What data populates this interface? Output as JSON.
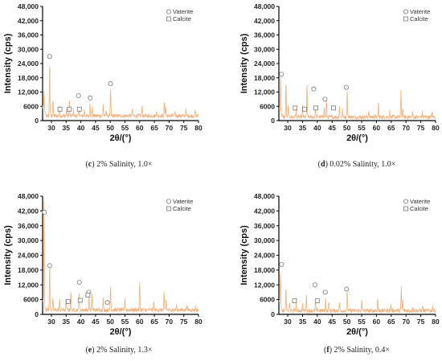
{
  "figure": {
    "legend_labels": [
      "Vaterite",
      "Calcite"
    ],
    "xlabel": "2θ/(°)",
    "ylabel": "Intensity (cps)",
    "x_ticks": [
      "30",
      "35",
      "40",
      "45",
      "50",
      "55",
      "60",
      "65",
      "70",
      "75",
      "80"
    ],
    "y_ticks": [
      "0",
      "6000",
      "12,000",
      "18,000",
      "24,000",
      "30,000",
      "36,000",
      "42,000",
      "48,000"
    ],
    "line_color": "#f5b07a",
    "axis_color": "#000000"
  },
  "panels": [
    {
      "letter": "c",
      "caption": "2% Salinity, 1.0×"
    },
    {
      "letter": "d",
      "caption": "0.02% Salinity, 1.0×"
    },
    {
      "letter": "e",
      "caption": "2% Salinity, 1.3×"
    },
    {
      "letter": "f",
      "caption": "2% Salinity, 0.4×"
    }
  ],
  "chart_data": [
    {
      "type": "line",
      "xlabel": "2θ/(°)",
      "ylabel": "Intensity (cps)",
      "xlim": [
        27,
        80
      ],
      "ylim": [
        0,
        48000
      ],
      "grid": false,
      "legend_position": "top-right",
      "baseline": 2000,
      "peaks": [
        [
          27.5,
          8000
        ],
        [
          29.4,
          24000
        ],
        [
          30.5,
          7000
        ],
        [
          32.8,
          3500
        ],
        [
          35.2,
          3000
        ],
        [
          36.1,
          7000
        ],
        [
          37.5,
          2500
        ],
        [
          39.4,
          3500
        ],
        [
          41.2,
          2500
        ],
        [
          43.1,
          5000
        ],
        [
          43.9,
          3500
        ],
        [
          47.6,
          5000
        ],
        [
          48.6,
          3000
        ],
        [
          50.1,
          12000
        ],
        [
          57.5,
          3000
        ],
        [
          60.8,
          4000
        ],
        [
          65.7,
          2500
        ],
        [
          68.4,
          6000
        ],
        [
          68.8,
          4000
        ],
        [
          72.0,
          2000
        ],
        [
          75.7,
          2500
        ],
        [
          78.9,
          2000
        ]
      ],
      "vaterite_markers": [
        [
          29.4,
          27000
        ],
        [
          39.2,
          10500
        ],
        [
          43.2,
          9500
        ],
        [
          50.1,
          15500
        ]
      ],
      "calcite_markers": [
        [
          32.9,
          4800
        ],
        [
          36.1,
          4800
        ],
        [
          39.5,
          4800
        ]
      ]
    },
    {
      "type": "line",
      "xlabel": "2θ/(°)",
      "ylabel": "Intensity (cps)",
      "xlim": [
        27,
        80
      ],
      "ylim": [
        0,
        48000
      ],
      "grid": false,
      "legend_position": "top-right",
      "baseline": 1500,
      "peaks": [
        [
          27.6,
          16000
        ],
        [
          29.4,
          15000
        ],
        [
          30.2,
          5000
        ],
        [
          32.8,
          3000
        ],
        [
          35.0,
          5000
        ],
        [
          36.5,
          14000
        ],
        [
          39.4,
          3500
        ],
        [
          42.3,
          4500
        ],
        [
          43.1,
          7500
        ],
        [
          47.5,
          4500
        ],
        [
          48.5,
          3000
        ],
        [
          50.1,
          11500
        ],
        [
          57.4,
          3000
        ],
        [
          60.7,
          6500
        ],
        [
          64.5,
          2500
        ],
        [
          68.3,
          11000
        ],
        [
          68.9,
          4500
        ],
        [
          72.2,
          2000
        ],
        [
          75.5,
          2000
        ],
        [
          78.8,
          2000
        ]
      ],
      "vaterite_markers": [
        [
          27.9,
          19500
        ],
        [
          38.8,
          13300
        ],
        [
          42.6,
          9000
        ],
        [
          49.8,
          14000
        ]
      ],
      "calcite_markers": [
        [
          32.5,
          5300
        ],
        [
          35.7,
          4800
        ],
        [
          39.5,
          5300
        ],
        [
          45.5,
          5300
        ]
      ]
    },
    {
      "type": "line",
      "xlabel": "2θ/(°)",
      "ylabel": "Intensity (cps)",
      "xlim": [
        27,
        80
      ],
      "ylim": [
        0,
        48000
      ],
      "grid": false,
      "legend_position": "top-right",
      "baseline": 1800,
      "peaks": [
        [
          27.5,
          42000
        ],
        [
          29.4,
          19000
        ],
        [
          30.5,
          4500
        ],
        [
          32.8,
          4000
        ],
        [
          35.0,
          4500
        ],
        [
          36.6,
          8000
        ],
        [
          39.4,
          7500
        ],
        [
          42.8,
          6000
        ],
        [
          43.8,
          6000
        ],
        [
          47.6,
          4500
        ],
        [
          50.1,
          10000
        ],
        [
          55.0,
          5000
        ],
        [
          60.0,
          11000
        ],
        [
          64.8,
          4000
        ],
        [
          68.3,
          7000
        ],
        [
          69.0,
          4000
        ],
        [
          72.5,
          2000
        ],
        [
          76.0,
          2500
        ],
        [
          79.0,
          2000
        ]
      ],
      "vaterite_markers": [
        [
          27.6,
          41500
        ],
        [
          29.4,
          19800
        ],
        [
          39.5,
          13000
        ],
        [
          42.7,
          9000
        ],
        [
          49.0,
          4800
        ]
      ],
      "calcite_markers": [
        [
          35.7,
          5200
        ],
        [
          39.8,
          5700
        ],
        [
          42.4,
          7800
        ]
      ]
    },
    {
      "type": "line",
      "xlabel": "2θ/(°)",
      "ylabel": "Intensity (cps)",
      "xlim": [
        27,
        80
      ],
      "ylim": [
        0,
        48000
      ],
      "grid": false,
      "legend_position": "top-right",
      "baseline": 1500,
      "peaks": [
        [
          27.5,
          14000
        ],
        [
          29.4,
          9000
        ],
        [
          30.6,
          3000
        ],
        [
          32.8,
          3000
        ],
        [
          35.0,
          3000
        ],
        [
          36.3,
          7000
        ],
        [
          39.4,
          5000
        ],
        [
          42.8,
          5000
        ],
        [
          43.9,
          4000
        ],
        [
          47.5,
          3500
        ],
        [
          50.1,
          8500
        ],
        [
          55.0,
          4000
        ],
        [
          60.4,
          5000
        ],
        [
          64.9,
          2500
        ],
        [
          68.4,
          10000
        ],
        [
          68.9,
          4000
        ],
        [
          72.3,
          2000
        ],
        [
          75.6,
          2000
        ],
        [
          79.0,
          2000
        ]
      ],
      "vaterite_markers": [
        [
          27.9,
          20300
        ],
        [
          39.2,
          12000
        ],
        [
          42.7,
          9000
        ],
        [
          49.9,
          10300
        ]
      ],
      "calcite_markers": [
        [
          32.3,
          5500
        ],
        [
          40.0,
          5500
        ]
      ]
    }
  ]
}
